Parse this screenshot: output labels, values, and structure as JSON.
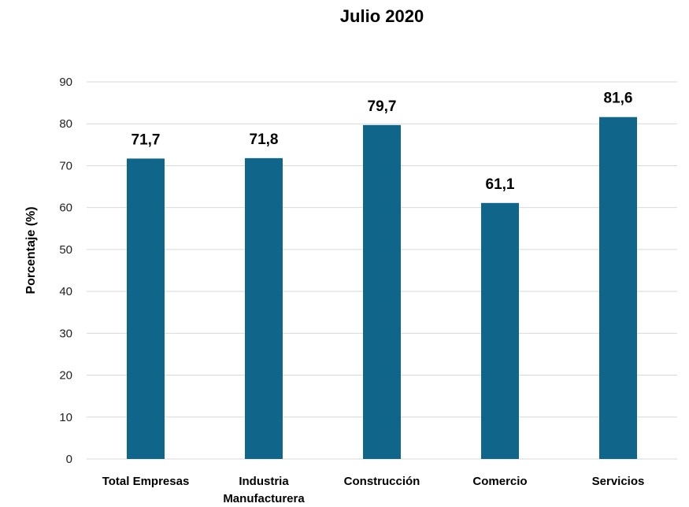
{
  "chart_data": {
    "type": "bar",
    "title": "Julio 2020",
    "ylabel": "Porcentaje (%)",
    "xlabel": "",
    "categories": [
      [
        "Total Empresas"
      ],
      [
        "Industria",
        "Manufacturera"
      ],
      [
        "Construcción"
      ],
      [
        "Comercio"
      ],
      [
        "Servicios"
      ]
    ],
    "values": [
      71.7,
      71.8,
      79.7,
      61.1,
      81.6
    ],
    "value_labels": [
      "71,7",
      "71,8",
      "79,7",
      "61,1",
      "81,6"
    ],
    "ylim": [
      0,
      90
    ],
    "yticks": [
      0,
      10,
      20,
      30,
      40,
      50,
      60,
      70,
      80,
      90
    ],
    "grid": true,
    "legend": "none",
    "bar_color": "#10658a"
  }
}
